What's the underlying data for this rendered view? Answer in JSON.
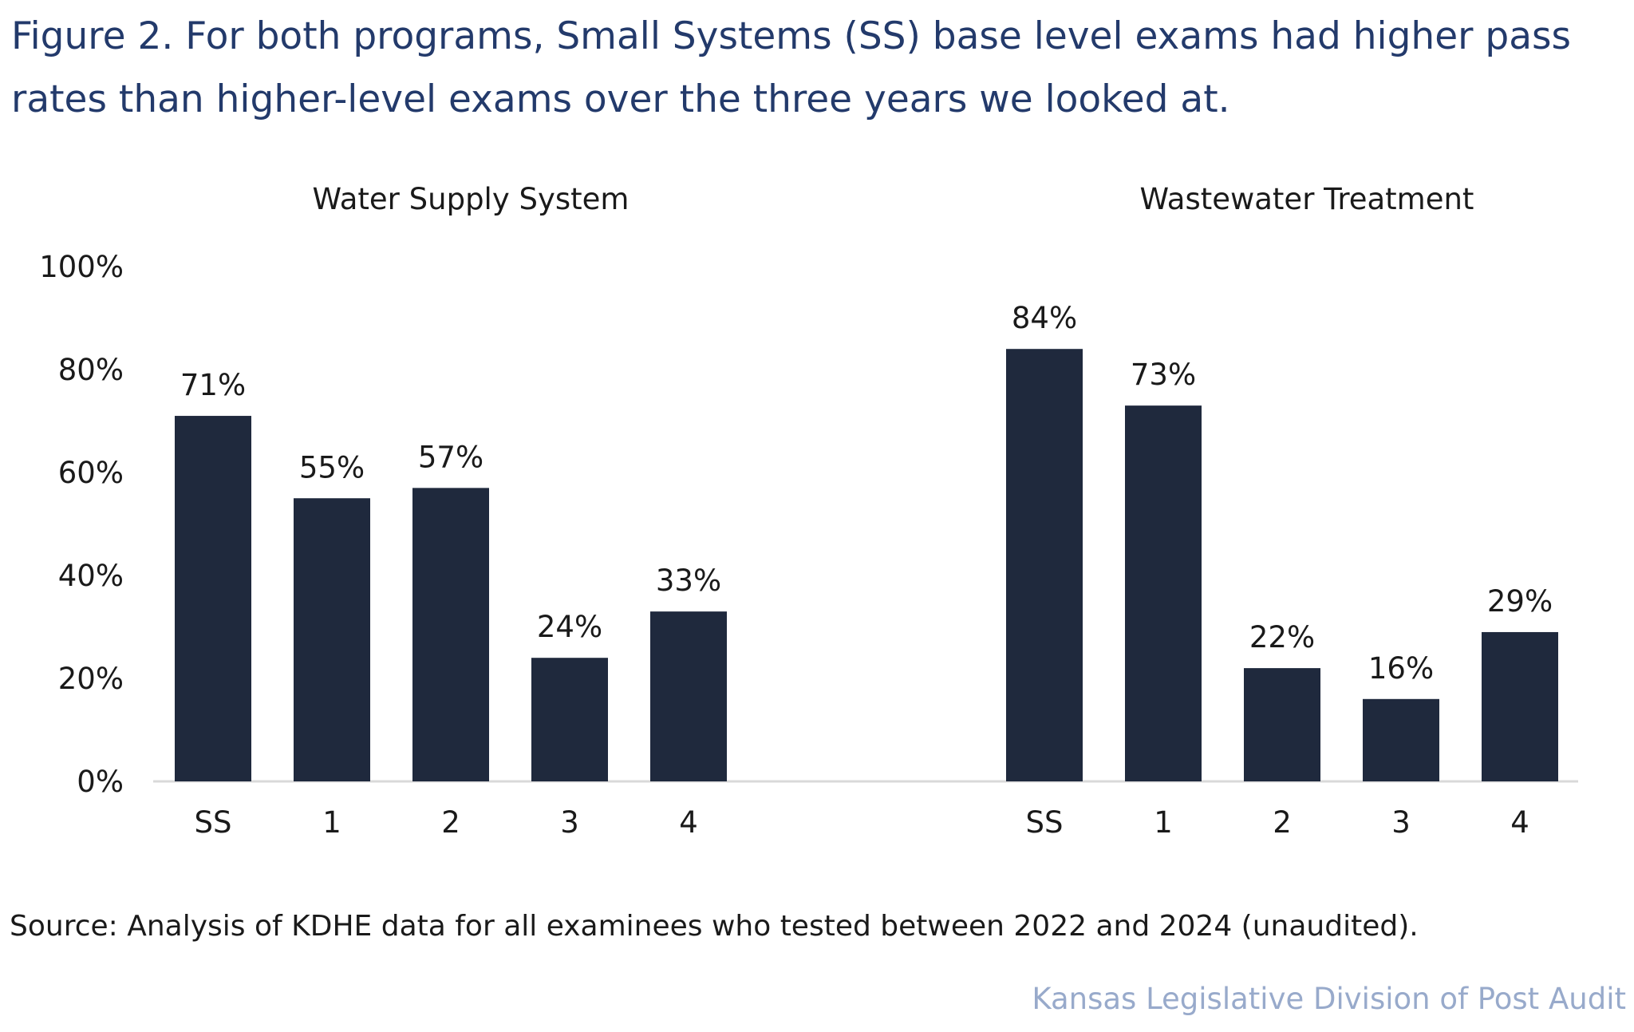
{
  "figure": {
    "title": "Figure 2. For both programs, Small Systems (SS) base level exams had higher pass rates than higher-level exams over the three years we looked at.",
    "source": "Source: Analysis of KDHE data for all examinees who tested between 2022 and 2024 (unaudited).",
    "attribution": "Kansas Legislative Division of Post Audit"
  },
  "colors": {
    "bar": "#1f293d",
    "title": "#233a6b",
    "axis_line": "#d9d9d9",
    "text": "#1a1a1a",
    "attribution": "#98aacb"
  },
  "chart_data": [
    {
      "type": "bar",
      "title": "Water Supply System",
      "categories": [
        "SS",
        "1",
        "2",
        "3",
        "4"
      ],
      "values": [
        71,
        55,
        57,
        24,
        33
      ],
      "data_labels": [
        "71%",
        "55%",
        "57%",
        "24%",
        "33%"
      ],
      "ylim": [
        0,
        100
      ],
      "yticks": [
        "0%",
        "20%",
        "40%",
        "60%",
        "80%",
        "100%"
      ],
      "grid": false
    },
    {
      "type": "bar",
      "title": "Wastewater Treatment",
      "categories": [
        "SS",
        "1",
        "2",
        "3",
        "4"
      ],
      "values": [
        84,
        73,
        22,
        16,
        29
      ],
      "data_labels": [
        "84%",
        "73%",
        "22%",
        "16%",
        "29%"
      ],
      "ylim": [
        0,
        100
      ],
      "grid": false
    }
  ]
}
